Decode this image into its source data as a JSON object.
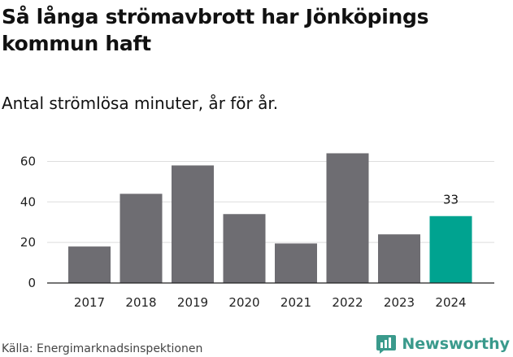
{
  "title": "Så långa strömavbrott har Jönköpings kommun haft",
  "subtitle": "Antal strömlösa minuter, år för år.",
  "source": "Källa: Energimarknadsinspektionen",
  "brand": {
    "name": "Newsworthy",
    "icon": "newsworthy-logo-icon",
    "color": "#3a9a8c"
  },
  "colors": {
    "bar": "#6e6d72",
    "highlight": "#00a390",
    "grid": "#dddddd",
    "axis": "#222222"
  },
  "chart_data": {
    "type": "bar",
    "title": "Så långa strömavbrott har Jönköpings kommun haft",
    "subtitle": "Antal strömlösa minuter, år för år.",
    "xlabel": "",
    "ylabel": "",
    "categories": [
      "2017",
      "2018",
      "2019",
      "2020",
      "2021",
      "2022",
      "2023",
      "2024"
    ],
    "values": [
      18,
      44,
      58,
      34,
      19.5,
      64,
      24,
      33
    ],
    "highlight_index": 7,
    "data_labels": [
      {
        "index": 7,
        "text": "33"
      }
    ],
    "ylim": [
      0,
      67
    ],
    "yticks": [
      0,
      20,
      40,
      60
    ],
    "grid": true,
    "legend": "none"
  }
}
